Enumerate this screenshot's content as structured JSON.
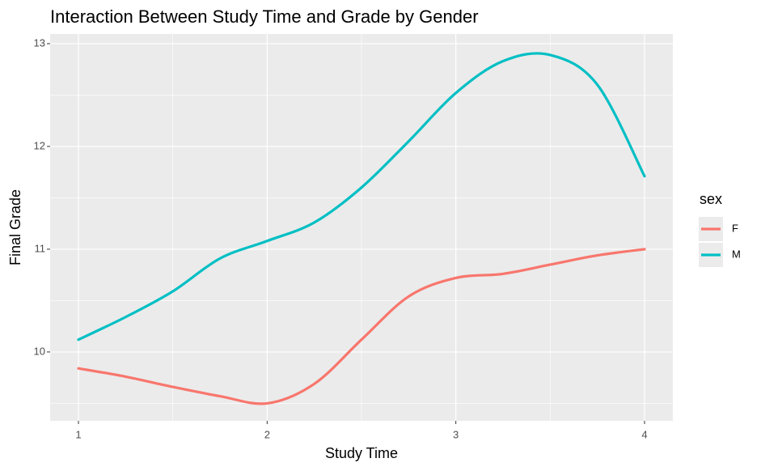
{
  "chart_data": {
    "type": "line",
    "title": "Interaction Between Study Time and Grade by Gender",
    "x_label": "Study Time",
    "y_label": "Final Grade",
    "legend_title": "sex",
    "legend_position": "right",
    "x": [
      1,
      1.25,
      1.5,
      1.75,
      2,
      2.25,
      2.5,
      2.75,
      3,
      3.25,
      3.5,
      3.75,
      4
    ],
    "series": [
      {
        "name": "F",
        "color": "#F8766D",
        "values": [
          9.84,
          9.76,
          9.66,
          9.57,
          9.5,
          9.69,
          10.12,
          10.54,
          10.72,
          10.76,
          10.85,
          10.94,
          11.0
        ]
      },
      {
        "name": "M",
        "color": "#00BFC4",
        "values": [
          10.12,
          10.34,
          10.59,
          10.91,
          11.08,
          11.26,
          11.6,
          12.05,
          12.52,
          12.83,
          12.89,
          12.6,
          11.71
        ]
      }
    ],
    "xlim": [
      0.85,
      4.15
    ],
    "ylim": [
      9.33,
      13.094
    ],
    "xticks": [
      1,
      2,
      3,
      4
    ],
    "yticks": [
      10,
      11,
      12,
      13
    ],
    "x_minor_gridlines": [
      1.5,
      2.5,
      3.5
    ],
    "y_minor_gridlines": [
      9.5,
      10.5,
      11.5,
      12.5
    ],
    "grid": true
  }
}
